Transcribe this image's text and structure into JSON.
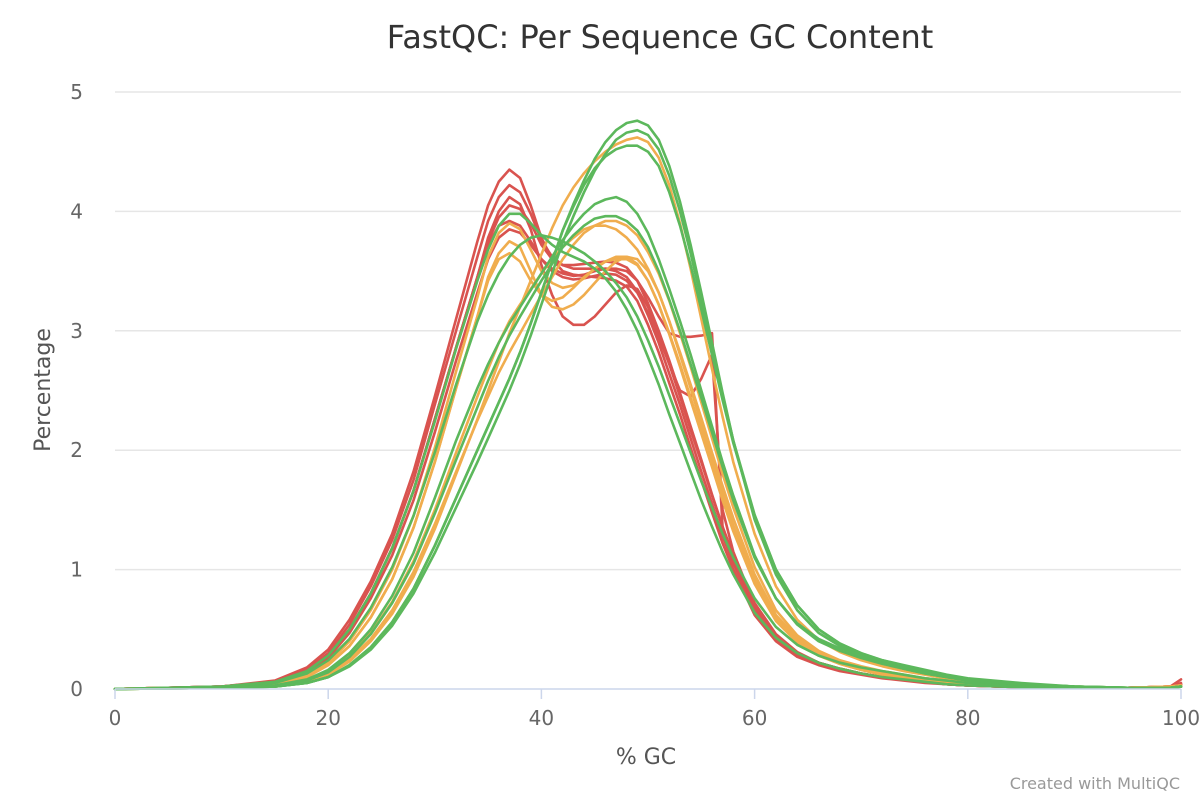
{
  "chart_data": {
    "type": "line",
    "title": "FastQC: Per Sequence GC Content",
    "xlabel": "% GC",
    "ylabel": "Percentage",
    "xlim": [
      0,
      100
    ],
    "ylim": [
      0,
      5
    ],
    "xticks": [
      0,
      20,
      40,
      60,
      80,
      100
    ],
    "yticks": [
      0,
      1,
      2,
      3,
      4,
      5
    ],
    "grid": true,
    "legend": "none",
    "credit": "Created with MultiQC",
    "x": [
      0,
      5,
      10,
      15,
      18,
      20,
      22,
      24,
      26,
      28,
      30,
      32,
      34,
      35,
      36,
      37,
      38,
      39,
      40,
      41,
      42,
      43,
      44,
      45,
      46,
      47,
      48,
      49,
      50,
      51,
      52,
      53,
      54,
      55,
      56,
      57,
      58,
      60,
      62,
      64,
      66,
      68,
      70,
      72,
      74,
      76,
      78,
      80,
      85,
      90,
      95,
      99,
      100
    ],
    "status_colors": {
      "fail": "#d9534f",
      "warn": "#f0ad4e",
      "pass": "#5cb85c"
    },
    "series": [
      {
        "status": "fail",
        "values": [
          0,
          0.01,
          0.02,
          0.07,
          0.18,
          0.33,
          0.58,
          0.9,
          1.3,
          1.82,
          2.45,
          3.1,
          3.75,
          4.05,
          4.25,
          4.35,
          4.28,
          4.05,
          3.78,
          3.6,
          3.5,
          3.47,
          3.46,
          3.45,
          3.44,
          3.42,
          3.37,
          3.25,
          3.05,
          2.82,
          2.56,
          2.3,
          2.02,
          1.75,
          1.48,
          1.22,
          1.0,
          0.62,
          0.4,
          0.27,
          0.2,
          0.15,
          0.12,
          0.09,
          0.07,
          0.05,
          0.04,
          0.03,
          0.015,
          0.01,
          0.01,
          0.02,
          0.05
        ]
      },
      {
        "status": "fail",
        "values": [
          0,
          0.01,
          0.02,
          0.06,
          0.16,
          0.3,
          0.54,
          0.86,
          1.25,
          1.75,
          2.38,
          3.0,
          3.62,
          3.92,
          4.12,
          4.22,
          4.16,
          3.98,
          3.76,
          3.62,
          3.55,
          3.52,
          3.52,
          3.52,
          3.52,
          3.5,
          3.45,
          3.33,
          3.13,
          2.9,
          2.64,
          2.38,
          2.1,
          1.82,
          1.55,
          1.28,
          1.05,
          0.66,
          0.42,
          0.29,
          0.21,
          0.16,
          0.13,
          0.1,
          0.08,
          0.06,
          0.04,
          0.03,
          0.015,
          0.01,
          0.01,
          0.02,
          0.04
        ]
      },
      {
        "status": "fail",
        "values": [
          0,
          0.01,
          0.02,
          0.06,
          0.15,
          0.28,
          0.5,
          0.8,
          1.18,
          1.66,
          2.26,
          2.86,
          3.45,
          3.75,
          3.95,
          4.05,
          4.02,
          3.9,
          3.72,
          3.6,
          3.55,
          3.55,
          3.56,
          3.57,
          3.58,
          3.57,
          3.53,
          3.42,
          3.23,
          3.0,
          2.75,
          2.48,
          2.2,
          1.92,
          1.63,
          1.36,
          1.12,
          0.7,
          0.45,
          0.3,
          0.22,
          0.17,
          0.13,
          0.1,
          0.08,
          0.06,
          0.04,
          0.03,
          0.015,
          0.01,
          0.01,
          0.02,
          0.04
        ]
      },
      {
        "status": "fail",
        "values": [
          0,
          0.01,
          0.02,
          0.06,
          0.15,
          0.28,
          0.5,
          0.8,
          1.18,
          1.66,
          2.26,
          2.86,
          3.45,
          3.78,
          4.0,
          4.12,
          4.06,
          3.85,
          3.55,
          3.3,
          3.12,
          3.05,
          3.05,
          3.12,
          3.22,
          3.32,
          3.38,
          3.35,
          3.2,
          2.98,
          2.72,
          2.45,
          2.17,
          1.9,
          1.62,
          1.35,
          1.1,
          0.69,
          0.44,
          0.3,
          0.22,
          0.17,
          0.13,
          0.1,
          0.08,
          0.06,
          0.04,
          0.03,
          0.015,
          0.01,
          0.01,
          0.02,
          0.08
        ]
      },
      {
        "status": "fail",
        "values": [
          0,
          0.01,
          0.02,
          0.06,
          0.14,
          0.26,
          0.47,
          0.76,
          1.12,
          1.58,
          2.15,
          2.75,
          3.32,
          3.6,
          3.78,
          3.85,
          3.82,
          3.72,
          3.6,
          3.52,
          3.48,
          3.46,
          3.47,
          3.5,
          3.52,
          3.52,
          3.5,
          3.42,
          3.28,
          3.12,
          2.98,
          2.95,
          2.95,
          2.96,
          2.98,
          1.35,
          1.12,
          0.72,
          0.46,
          0.31,
          0.22,
          0.17,
          0.13,
          0.1,
          0.08,
          0.06,
          0.04,
          0.03,
          0.015,
          0.01,
          0.01,
          0.02,
          0.04
        ]
      },
      {
        "status": "fail",
        "values": [
          0,
          0.01,
          0.02,
          0.06,
          0.15,
          0.28,
          0.5,
          0.8,
          1.18,
          1.66,
          2.26,
          2.86,
          3.45,
          3.72,
          3.88,
          3.92,
          3.88,
          3.75,
          3.6,
          3.5,
          3.45,
          3.43,
          3.44,
          3.46,
          3.48,
          3.47,
          3.42,
          3.32,
          3.15,
          2.95,
          2.72,
          2.5,
          2.45,
          2.6,
          2.8,
          1.5,
          1.15,
          0.7,
          0.45,
          0.3,
          0.22,
          0.17,
          0.13,
          0.1,
          0.08,
          0.06,
          0.04,
          0.03,
          0.015,
          0.01,
          0.01,
          0.02,
          0.04
        ]
      },
      {
        "status": "warn",
        "values": [
          0,
          0.01,
          0.01,
          0.04,
          0.1,
          0.2,
          0.36,
          0.6,
          0.92,
          1.35,
          1.9,
          2.52,
          3.12,
          3.42,
          3.6,
          3.65,
          3.58,
          3.42,
          3.3,
          3.25,
          3.28,
          3.36,
          3.45,
          3.52,
          3.58,
          3.6,
          3.6,
          3.55,
          3.42,
          3.22,
          2.97,
          2.7,
          2.42,
          2.14,
          1.86,
          1.58,
          1.32,
          0.88,
          0.57,
          0.39,
          0.28,
          0.21,
          0.16,
          0.12,
          0.1,
          0.07,
          0.05,
          0.04,
          0.02,
          0.01,
          0.01,
          0.02,
          0.03
        ]
      },
      {
        "status": "warn",
        "values": [
          0,
          0.01,
          0.01,
          0.04,
          0.1,
          0.2,
          0.36,
          0.6,
          0.92,
          1.35,
          1.9,
          2.52,
          3.12,
          3.45,
          3.65,
          3.75,
          3.7,
          3.5,
          3.3,
          3.2,
          3.18,
          3.22,
          3.3,
          3.4,
          3.5,
          3.58,
          3.62,
          3.6,
          3.5,
          3.32,
          3.08,
          2.8,
          2.52,
          2.22,
          1.93,
          1.64,
          1.37,
          0.92,
          0.6,
          0.41,
          0.29,
          0.22,
          0.17,
          0.13,
          0.1,
          0.08,
          0.06,
          0.04,
          0.02,
          0.01,
          0.01,
          0.02,
          0.03
        ]
      },
      {
        "status": "warn",
        "values": [
          0,
          0.01,
          0.01,
          0.04,
          0.11,
          0.22,
          0.4,
          0.66,
          1.0,
          1.45,
          2.02,
          2.66,
          3.28,
          3.62,
          3.82,
          3.9,
          3.85,
          3.68,
          3.5,
          3.4,
          3.36,
          3.38,
          3.44,
          3.52,
          3.58,
          3.62,
          3.62,
          3.56,
          3.42,
          3.22,
          2.98,
          2.72,
          2.44,
          2.16,
          1.88,
          1.6,
          1.34,
          0.9,
          0.58,
          0.4,
          0.28,
          0.21,
          0.16,
          0.12,
          0.1,
          0.07,
          0.05,
          0.04,
          0.02,
          0.01,
          0.01,
          0.02,
          0.03
        ]
      },
      {
        "status": "warn",
        "values": [
          0,
          0.005,
          0.01,
          0.03,
          0.07,
          0.13,
          0.25,
          0.42,
          0.66,
          0.98,
          1.38,
          1.82,
          2.25,
          2.45,
          2.65,
          2.82,
          2.98,
          3.14,
          3.3,
          3.45,
          3.6,
          3.72,
          3.82,
          3.88,
          3.92,
          3.92,
          3.88,
          3.8,
          3.66,
          3.48,
          3.25,
          2.98,
          2.7,
          2.4,
          2.1,
          1.8,
          1.52,
          1.02,
          0.66,
          0.45,
          0.32,
          0.24,
          0.19,
          0.15,
          0.12,
          0.09,
          0.07,
          0.05,
          0.03,
          0.015,
          0.01,
          0.015,
          0.02
        ]
      },
      {
        "status": "warn",
        "values": [
          0,
          0.005,
          0.01,
          0.03,
          0.08,
          0.15,
          0.28,
          0.47,
          0.73,
          1.07,
          1.5,
          1.98,
          2.45,
          2.68,
          2.9,
          3.08,
          3.22,
          3.35,
          3.48,
          3.6,
          3.7,
          3.78,
          3.85,
          3.88,
          3.88,
          3.85,
          3.78,
          3.68,
          3.52,
          3.32,
          3.08,
          2.82,
          2.55,
          2.27,
          1.98,
          1.7,
          1.43,
          0.96,
          0.62,
          0.43,
          0.31,
          0.23,
          0.18,
          0.14,
          0.11,
          0.09,
          0.07,
          0.05,
          0.03,
          0.015,
          0.01,
          0.015,
          0.02
        ]
      },
      {
        "status": "warn",
        "values": [
          0,
          0.005,
          0.01,
          0.02,
          0.06,
          0.12,
          0.23,
          0.4,
          0.63,
          0.94,
          1.34,
          1.8,
          2.26,
          2.5,
          2.74,
          2.98,
          3.2,
          3.42,
          3.64,
          3.86,
          4.05,
          4.2,
          4.32,
          4.42,
          4.5,
          4.56,
          4.6,
          4.62,
          4.58,
          4.45,
          4.22,
          3.9,
          3.52,
          3.1,
          2.68,
          2.28,
          1.9,
          1.3,
          0.86,
          0.58,
          0.41,
          0.31,
          0.24,
          0.19,
          0.15,
          0.12,
          0.09,
          0.07,
          0.04,
          0.02,
          0.01,
          0.01,
          0.02
        ]
      },
      {
        "status": "pass",
        "values": [
          0,
          0.01,
          0.02,
          0.05,
          0.13,
          0.24,
          0.42,
          0.68,
          1.02,
          1.45,
          1.98,
          2.55,
          3.08,
          3.3,
          3.48,
          3.62,
          3.72,
          3.78,
          3.8,
          3.78,
          3.75,
          3.7,
          3.65,
          3.58,
          3.5,
          3.4,
          3.28,
          3.12,
          2.92,
          2.7,
          2.46,
          2.22,
          1.98,
          1.74,
          1.52,
          1.3,
          1.1,
          0.76,
          0.52,
          0.37,
          0.28,
          0.22,
          0.18,
          0.15,
          0.12,
          0.09,
          0.07,
          0.05,
          0.03,
          0.015,
          0.01,
          0.01,
          0.02
        ]
      },
      {
        "status": "pass",
        "values": [
          0,
          0.01,
          0.02,
          0.06,
          0.15,
          0.28,
          0.5,
          0.8,
          1.18,
          1.66,
          2.24,
          2.85,
          3.42,
          3.68,
          3.88,
          3.98,
          3.98,
          3.9,
          3.8,
          3.72,
          3.66,
          3.62,
          3.58,
          3.52,
          3.44,
          3.33,
          3.18,
          3.0,
          2.78,
          2.55,
          2.3,
          2.06,
          1.82,
          1.58,
          1.36,
          1.15,
          0.96,
          0.64,
          0.43,
          0.3,
          0.22,
          0.17,
          0.13,
          0.1,
          0.08,
          0.06,
          0.04,
          0.03,
          0.015,
          0.01,
          0.01,
          0.01,
          0.02
        ]
      },
      {
        "status": "pass",
        "values": [
          0,
          0.005,
          0.01,
          0.03,
          0.08,
          0.16,
          0.3,
          0.5,
          0.78,
          1.14,
          1.6,
          2.08,
          2.52,
          2.72,
          2.9,
          3.06,
          3.2,
          3.34,
          3.48,
          3.62,
          3.76,
          3.88,
          3.98,
          4.06,
          4.1,
          4.12,
          4.08,
          3.98,
          3.82,
          3.6,
          3.35,
          3.08,
          2.8,
          2.5,
          2.2,
          1.9,
          1.62,
          1.12,
          0.76,
          0.54,
          0.4,
          0.32,
          0.26,
          0.21,
          0.17,
          0.13,
          0.1,
          0.07,
          0.04,
          0.02,
          0.01,
          0.01,
          0.02
        ]
      },
      {
        "status": "pass",
        "values": [
          0,
          0.005,
          0.01,
          0.025,
          0.07,
          0.14,
          0.27,
          0.46,
          0.72,
          1.05,
          1.47,
          1.92,
          2.36,
          2.58,
          2.78,
          2.96,
          3.12,
          3.27,
          3.42,
          3.56,
          3.7,
          3.8,
          3.88,
          3.94,
          3.96,
          3.96,
          3.92,
          3.84,
          3.7,
          3.5,
          3.26,
          3.0,
          2.72,
          2.44,
          2.15,
          1.86,
          1.58,
          1.1,
          0.76,
          0.55,
          0.42,
          0.34,
          0.28,
          0.23,
          0.18,
          0.14,
          0.11,
          0.08,
          0.04,
          0.02,
          0.01,
          0.01,
          0.02
        ]
      },
      {
        "status": "pass",
        "values": [
          0,
          0.005,
          0.01,
          0.02,
          0.05,
          0.1,
          0.2,
          0.35,
          0.56,
          0.84,
          1.2,
          1.6,
          2.0,
          2.2,
          2.4,
          2.6,
          2.82,
          3.06,
          3.32,
          3.58,
          3.84,
          4.06,
          4.26,
          4.44,
          4.58,
          4.68,
          4.74,
          4.76,
          4.72,
          4.6,
          4.38,
          4.08,
          3.72,
          3.32,
          2.9,
          2.48,
          2.08,
          1.42,
          0.96,
          0.66,
          0.47,
          0.36,
          0.28,
          0.22,
          0.17,
          0.13,
          0.1,
          0.07,
          0.04,
          0.02,
          0.01,
          0.01,
          0.02
        ]
      },
      {
        "status": "pass",
        "values": [
          0,
          0.005,
          0.01,
          0.02,
          0.05,
          0.1,
          0.2,
          0.35,
          0.56,
          0.84,
          1.2,
          1.6,
          2.0,
          2.2,
          2.4,
          2.6,
          2.82,
          3.06,
          3.32,
          3.58,
          3.84,
          4.04,
          4.22,
          4.36,
          4.46,
          4.52,
          4.55,
          4.55,
          4.5,
          4.38,
          4.16,
          3.88,
          3.55,
          3.18,
          2.8,
          2.42,
          2.06,
          1.45,
          1.0,
          0.7,
          0.5,
          0.38,
          0.3,
          0.24,
          0.19,
          0.15,
          0.11,
          0.08,
          0.04,
          0.02,
          0.01,
          0.01,
          0.02
        ]
      },
      {
        "status": "pass",
        "values": [
          0,
          0.005,
          0.01,
          0.02,
          0.05,
          0.1,
          0.19,
          0.33,
          0.53,
          0.8,
          1.14,
          1.52,
          1.9,
          2.1,
          2.3,
          2.5,
          2.72,
          2.96,
          3.22,
          3.48,
          3.74,
          3.96,
          4.16,
          4.34,
          4.48,
          4.6,
          4.66,
          4.68,
          4.64,
          4.52,
          4.3,
          4.0,
          3.65,
          3.26,
          2.86,
          2.46,
          2.08,
          1.46,
          1.0,
          0.7,
          0.5,
          0.38,
          0.3,
          0.24,
          0.2,
          0.16,
          0.12,
          0.09,
          0.05,
          0.02,
          0.01,
          0.01,
          0.02
        ]
      }
    ]
  }
}
